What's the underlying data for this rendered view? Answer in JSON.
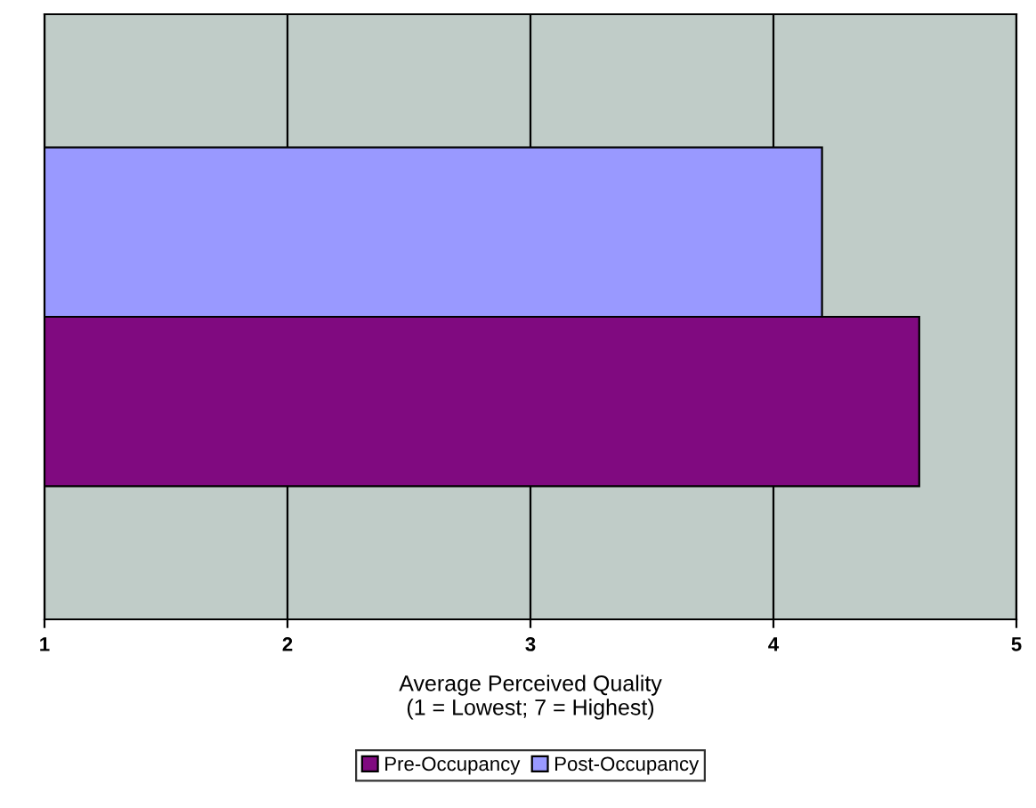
{
  "chart_data": {
    "type": "bar",
    "orientation": "horizontal",
    "categories": [
      null
    ],
    "series": [
      {
        "name": "Pre-Occupancy",
        "color": "#800a80",
        "values": [
          4.6
        ]
      },
      {
        "name": "Post-Occupancy",
        "color": "#9999ff",
        "values": [
          4.2
        ]
      }
    ],
    "xlabel": "Average Perceived Quality\n(1 = Lowest; 7 = Highest)",
    "xlim": [
      1,
      5
    ],
    "xticks": [
      1,
      2,
      3,
      4,
      5
    ],
    "grid": "x",
    "legend": "bottom"
  }
}
